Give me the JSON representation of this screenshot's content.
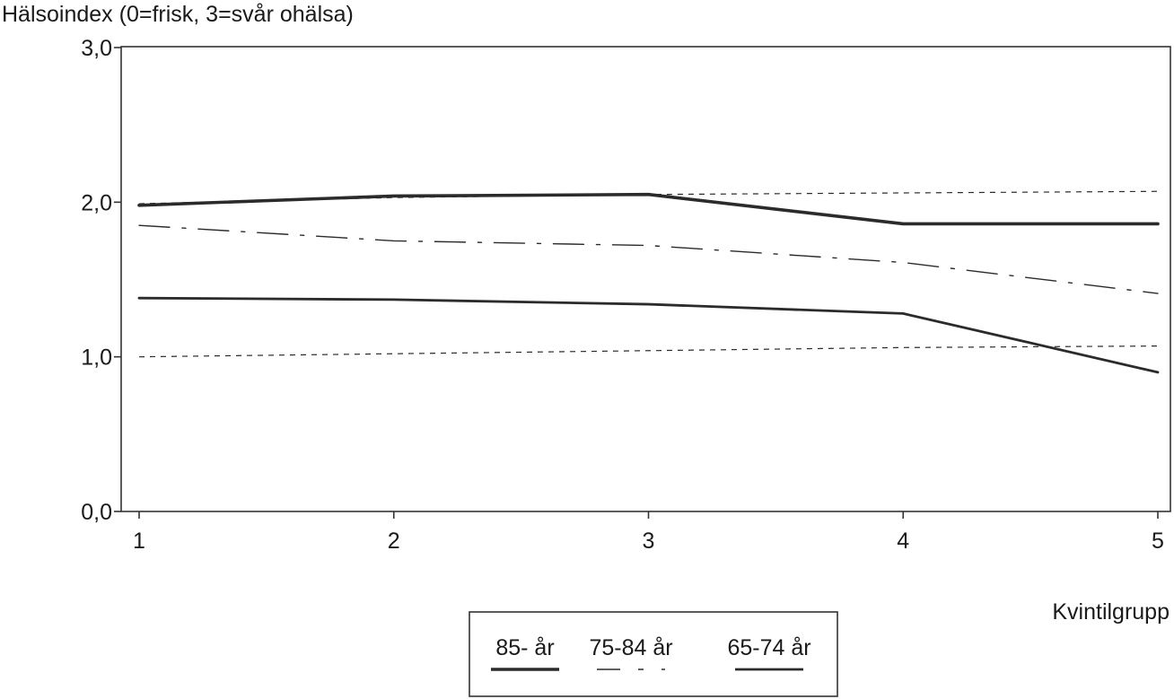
{
  "chart_data": {
    "type": "line",
    "ylabel": "Hälsoindex (0=frisk, 3=svår ohälsa)",
    "xlabel": "Kvintilgrupp",
    "categories": [
      "1",
      "2",
      "3",
      "4",
      "5"
    ],
    "x": [
      1,
      2,
      3,
      4,
      5
    ],
    "ylim": [
      0,
      3
    ],
    "xlim": [
      1,
      5
    ],
    "yticks": [
      "0,0",
      "1,0",
      "2,0",
      "3,0"
    ],
    "ytick_values": [
      0,
      1,
      2,
      3
    ],
    "grid": false,
    "legend_position": "bottom-center",
    "series": [
      {
        "name": "85- år",
        "style": "solid-thick",
        "values": [
          1.98,
          2.04,
          2.05,
          1.86,
          1.86
        ]
      },
      {
        "name": "75-84 år",
        "style": "dash-dot",
        "values": [
          1.85,
          1.75,
          1.72,
          1.61,
          1.41
        ]
      },
      {
        "name": "65-74 år",
        "style": "solid",
        "values": [
          1.38,
          1.37,
          1.34,
          1.28,
          0.9
        ]
      }
    ],
    "reference_lines": [
      {
        "style": "dotted",
        "values": [
          1.99,
          2.03,
          2.05,
          2.06,
          2.07
        ]
      },
      {
        "style": "dotted",
        "values": [
          1.0,
          1.02,
          1.04,
          1.06,
          1.07
        ]
      }
    ],
    "colors": {
      "line": "#2b2b2b",
      "axis": "#333333",
      "text": "#1a1a1a"
    }
  }
}
